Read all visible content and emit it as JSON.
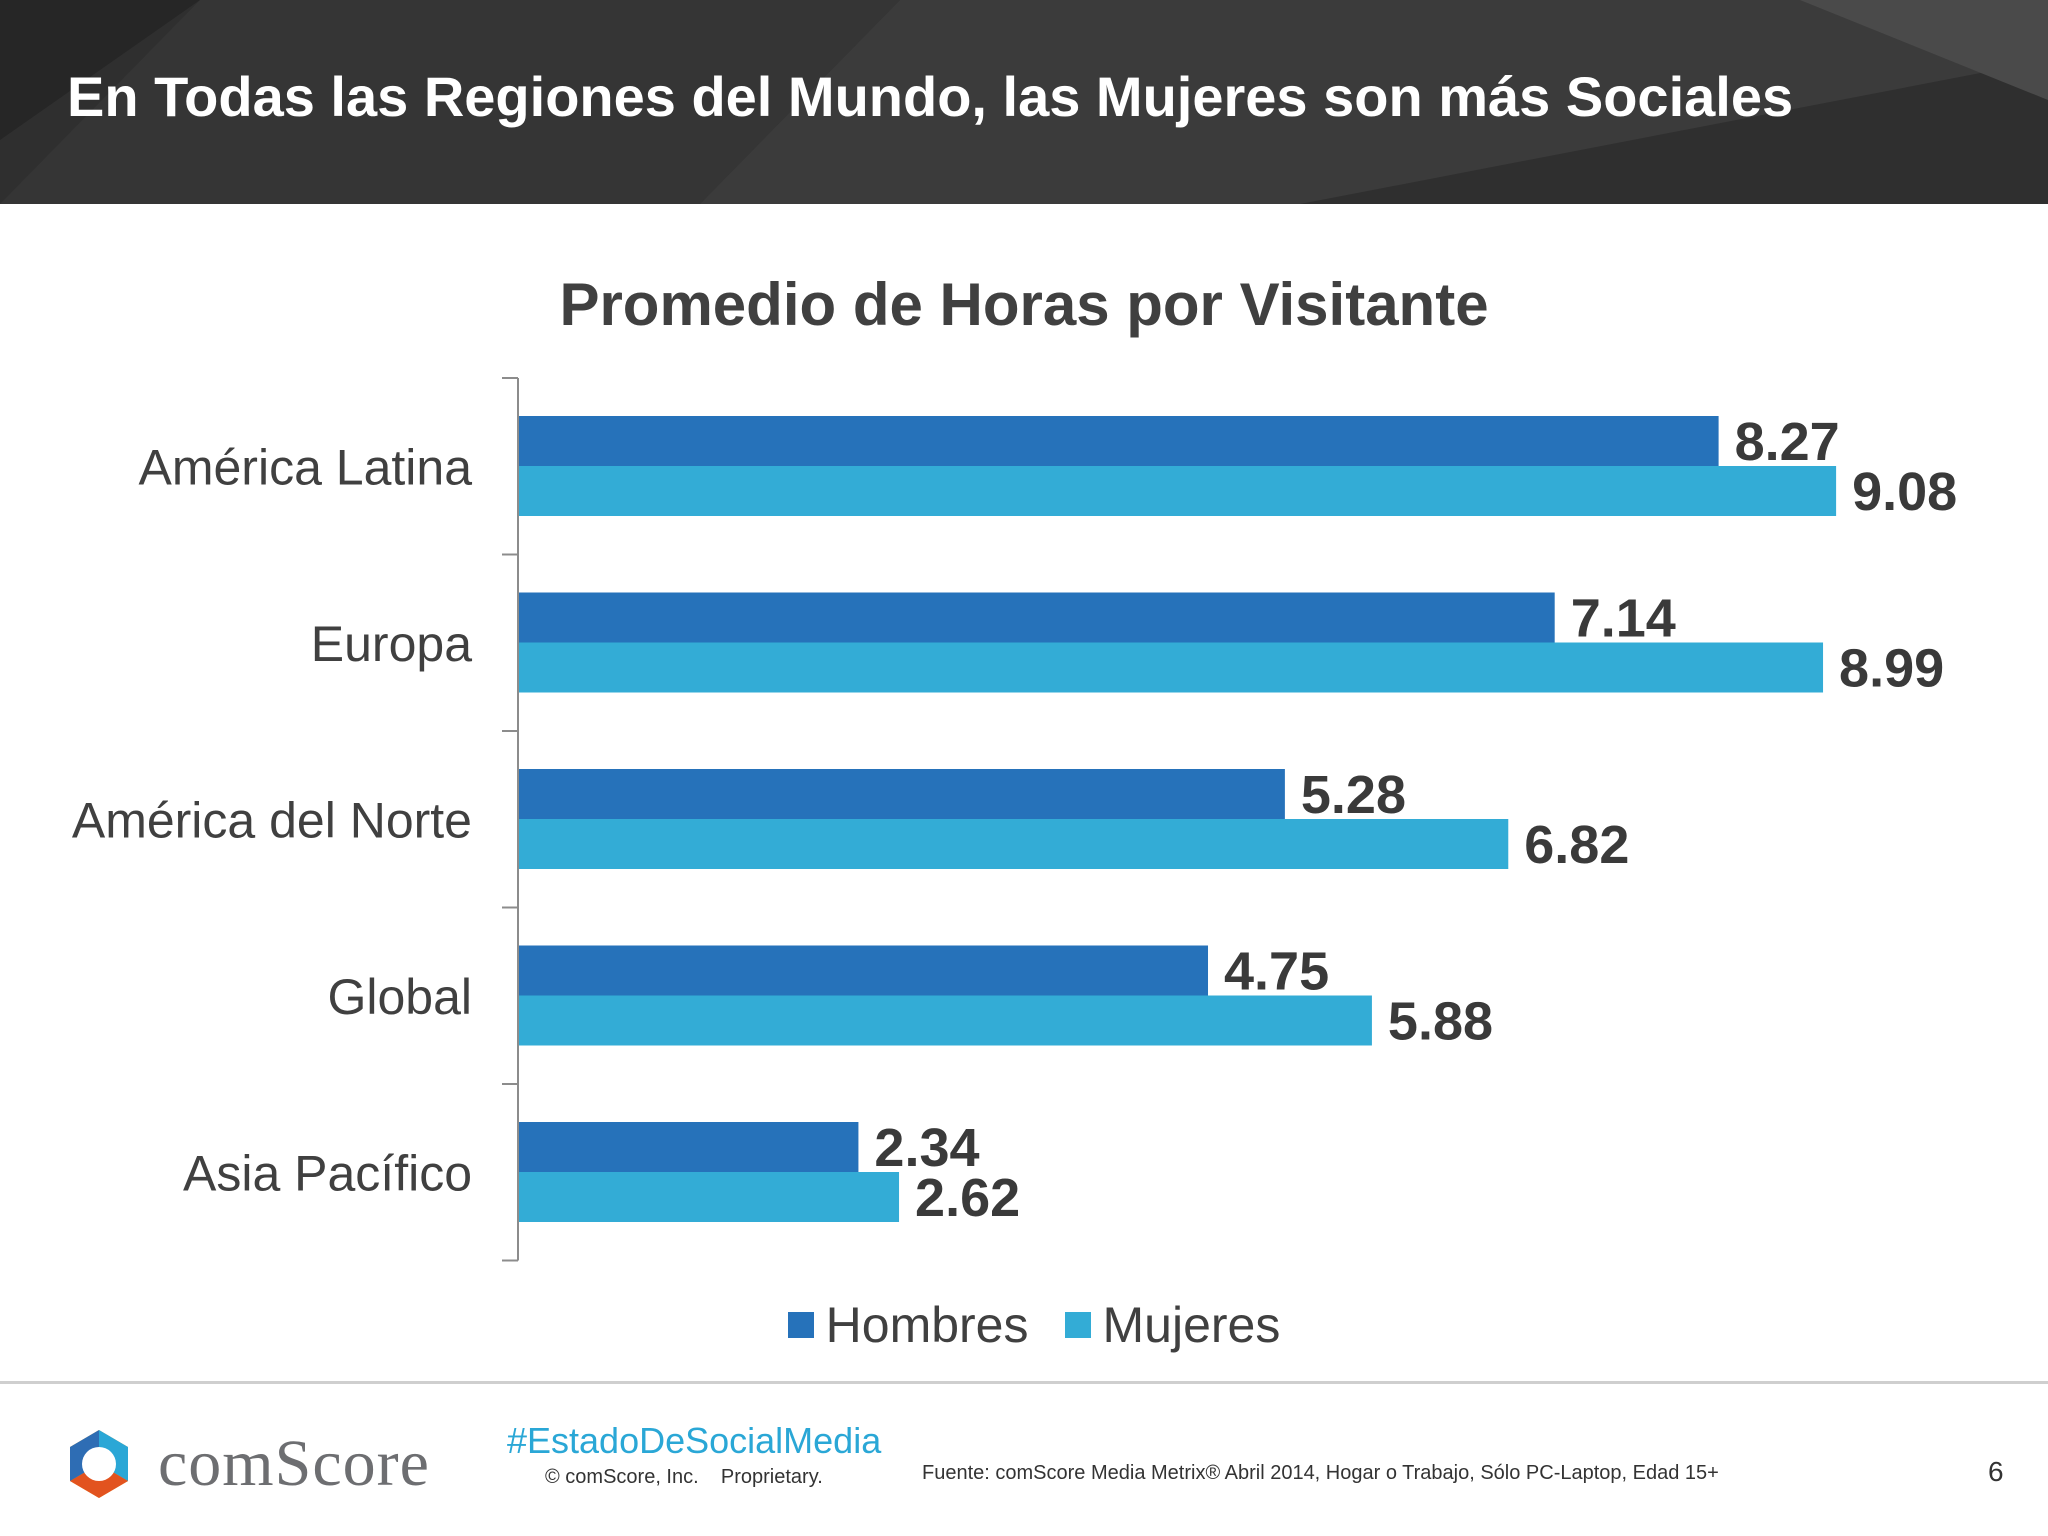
{
  "header": {
    "title": "En Todas las Regiones del Mundo, las Mujeres son más Sociales"
  },
  "chart_data": {
    "type": "bar",
    "orientation": "horizontal",
    "title": "Promedio de Horas por Visitante",
    "categories": [
      "América Latina",
      "Europa",
      "América del Norte",
      "Global",
      "Asia Pacífico"
    ],
    "series": [
      {
        "name": "Hombres",
        "color": "#2672ba",
        "values": [
          8.27,
          7.14,
          5.28,
          4.75,
          2.34
        ],
        "labels": [
          "8.27",
          "7.14",
          "5.28",
          "4.75",
          "2.34"
        ]
      },
      {
        "name": "Mujeres",
        "color": "#33acd6",
        "values": [
          9.08,
          8.99,
          6.82,
          5.88,
          2.62
        ],
        "labels": [
          "9.08",
          "8.99",
          "6.82",
          "5.88",
          "2.62"
        ]
      }
    ],
    "xlim": [
      0,
      9.1
    ],
    "grid": false,
    "legend": "bottom"
  },
  "footer": {
    "logo_text": "comScore",
    "hashtag": "#EstadoDeSocialMedia",
    "copyright": "© comScore, Inc.    Proprietary.",
    "source": "Fuente: comScore Media Metrix® Abril 2014, Hogar o Trabajo, Sólo PC-Laptop, Edad 15+",
    "page_number": "6"
  }
}
